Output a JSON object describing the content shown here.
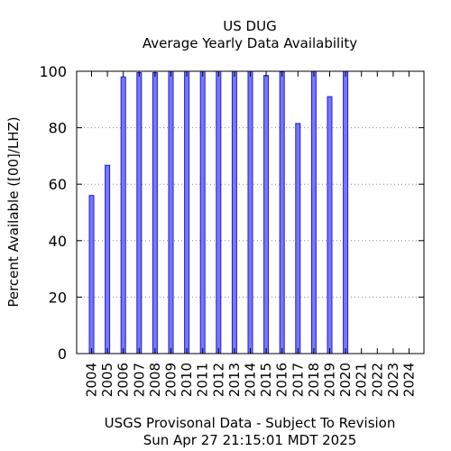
{
  "chart_data": {
    "type": "bar",
    "title": "US DUG",
    "subtitle": "Average Yearly Data Availability",
    "xlabel": "USGS Provisonal Data - Subject To Revision",
    "footer": "Sun Apr 27 21:15:01 MDT 2025",
    "ylabel": "Percent Available ([00]/LHZ)",
    "ylim": [
      0,
      100
    ],
    "yticks": [
      0,
      20,
      40,
      60,
      80,
      100
    ],
    "grid": true,
    "categories": [
      "2004",
      "2005",
      "2006",
      "2007",
      "2008",
      "2009",
      "2010",
      "2011",
      "2012",
      "2013",
      "2014",
      "2015",
      "2016",
      "2017",
      "2018",
      "2019",
      "2020",
      "2021",
      "2022",
      "2023",
      "2024"
    ],
    "values": [
      56,
      66.7,
      98,
      99.5,
      99.5,
      100,
      100,
      100,
      100,
      100,
      100,
      98.5,
      99.8,
      81.5,
      100,
      91,
      100,
      null,
      null,
      null,
      null
    ],
    "colors": {
      "bar_fill": "#7777ff",
      "bar_stroke": "#1c1ccf"
    }
  }
}
